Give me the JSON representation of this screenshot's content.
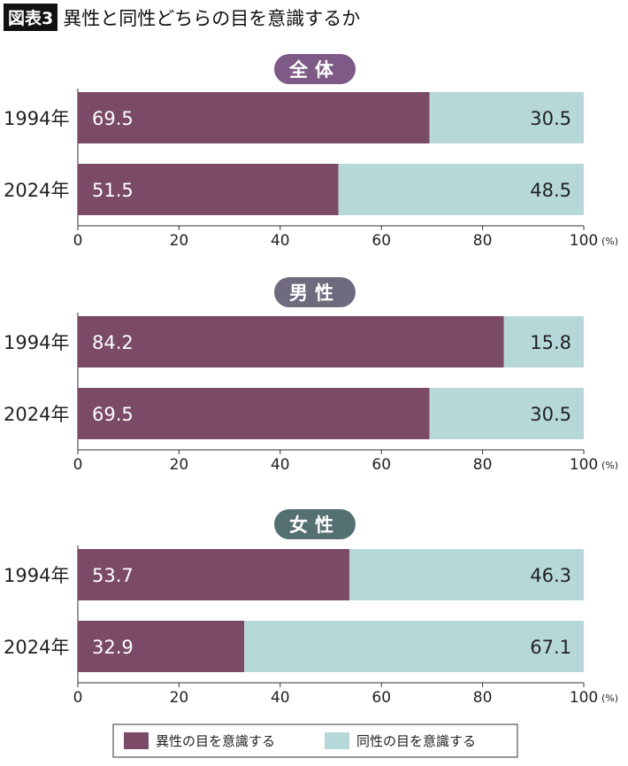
{
  "header": {
    "tag": "図表3",
    "title": "異性と同性どちらの目を意識するか"
  },
  "chart_data": [
    {
      "type": "bar",
      "stacked": true,
      "orientation": "horizontal",
      "panel_label": "全体",
      "badge_color": "#7e5a87",
      "categories": [
        "1994年",
        "2024年"
      ],
      "series": [
        {
          "name": "異性の目を意識する",
          "values": [
            69.5,
            51.5
          ]
        },
        {
          "name": "同性の目を意識する",
          "values": [
            30.5,
            48.5
          ]
        }
      ],
      "xlim": [
        0,
        100
      ],
      "xticks": [
        "0",
        "20",
        "40",
        "60",
        "80",
        "100"
      ],
      "xunit": "(%)"
    },
    {
      "type": "bar",
      "stacked": true,
      "orientation": "horizontal",
      "panel_label": "男性",
      "badge_color": "#6f6a7e",
      "categories": [
        "1994年",
        "2024年"
      ],
      "series": [
        {
          "name": "異性の目を意識する",
          "values": [
            84.2,
            69.5
          ]
        },
        {
          "name": "同性の目を意識する",
          "values": [
            15.8,
            30.5
          ]
        }
      ],
      "xlim": [
        0,
        100
      ],
      "xticks": [
        "0",
        "20",
        "40",
        "60",
        "80",
        "100"
      ],
      "xunit": "(%)"
    },
    {
      "type": "bar",
      "stacked": true,
      "orientation": "horizontal",
      "panel_label": "女性",
      "badge_color": "#557070",
      "categories": [
        "1994年",
        "2024年"
      ],
      "series": [
        {
          "name": "異性の目を意識する",
          "values": [
            53.7,
            32.9
          ]
        },
        {
          "name": "同性の目を意識する",
          "values": [
            46.3,
            67.1
          ]
        }
      ],
      "xlim": [
        0,
        100
      ],
      "xticks": [
        "0",
        "20",
        "40",
        "60",
        "80",
        "100"
      ],
      "xunit": "(%)"
    }
  ],
  "legend": {
    "position": "bottom",
    "items": [
      {
        "label": "異性の目を意識する",
        "color": "#7a4a66"
      },
      {
        "label": "同性の目を意識する",
        "color": "#b6d8d9"
      }
    ]
  }
}
